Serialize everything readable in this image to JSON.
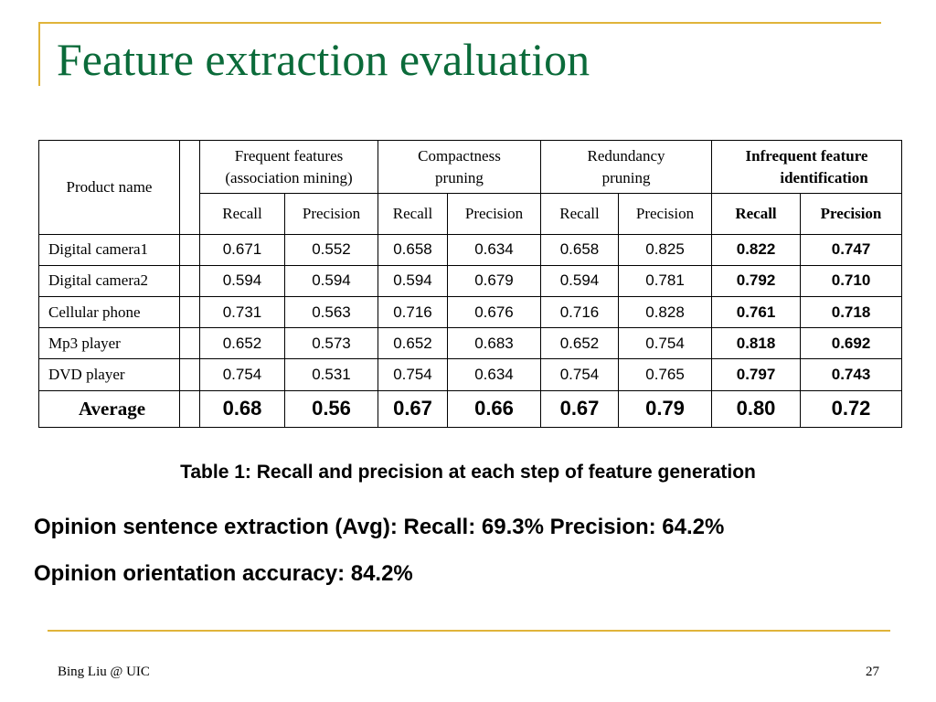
{
  "slide": {
    "title": "Feature extraction evaluation",
    "footer_author": "Bing Liu @ UIC",
    "page_number": "27",
    "accent_color": "#e0b43a",
    "title_color": "#0b6b3a"
  },
  "table": {
    "product_header": "Product name",
    "groups": [
      {
        "line1": "Frequent features",
        "line2": "(association mining)",
        "bold": false
      },
      {
        "line1": "Compactness",
        "line2": "pruning",
        "bold": false
      },
      {
        "line1": "Redundancy",
        "line2": "pruning",
        "bold": false
      },
      {
        "line1": "Infrequent feature",
        "line2": "identification",
        "bold": true
      }
    ],
    "subheaders": [
      "Recall",
      "Precision",
      "Recall",
      "Precision",
      "Recall",
      "Precision",
      "Recall",
      "Precision"
    ],
    "rows": [
      {
        "name": "Digital camera1",
        "values": [
          "0.671",
          "0.552",
          "0.658",
          "0.634",
          "0.658",
          "0.825",
          "0.822",
          "0.747"
        ]
      },
      {
        "name": "Digital camera2",
        "values": [
          "0.594",
          "0.594",
          "0.594",
          "0.679",
          "0.594",
          "0.781",
          "0.792",
          "0.710"
        ]
      },
      {
        "name": "Cellular phone",
        "values": [
          "0.731",
          "0.563",
          "0.716",
          "0.676",
          "0.716",
          "0.828",
          "0.761",
          "0.718"
        ]
      },
      {
        "name": "Mp3 player",
        "values": [
          "0.652",
          "0.573",
          "0.652",
          "0.683",
          "0.652",
          "0.754",
          "0.818",
          "0.692"
        ]
      },
      {
        "name": "DVD player",
        "values": [
          "0.754",
          "0.531",
          "0.754",
          "0.634",
          "0.754",
          "0.765",
          "0.797",
          "0.743"
        ]
      }
    ],
    "average": {
      "name": "Average",
      "values": [
        "0.68",
        "0.56",
        "0.67",
        "0.66",
        "0.67",
        "0.79",
        "0.80",
        "0.72"
      ]
    }
  },
  "caption": "Table 1: Recall and precision at each step of feature generation",
  "stats": [
    "Opinion sentence extraction (Avg): Recall: 69.3% Precision: 64.2%",
    "Opinion orientation accuracy: 84.2%"
  ]
}
